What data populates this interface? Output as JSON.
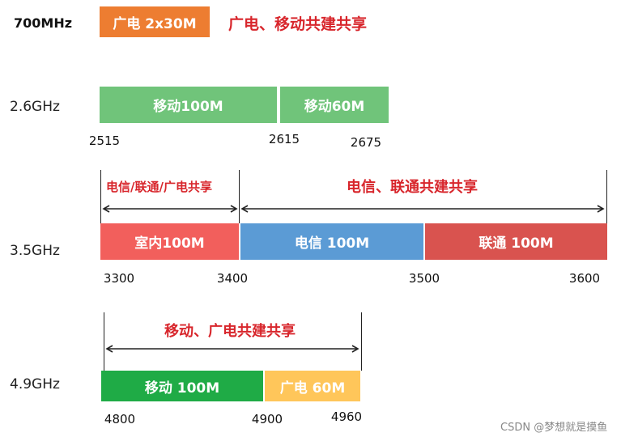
{
  "bands": {
    "b700": {
      "label": "700MHz",
      "segment": "广电 2x30M",
      "note": "广电、移动共建共享"
    },
    "b2600": {
      "label": "2.6GHz",
      "segments": [
        "移动100M",
        "移动60M"
      ],
      "ticks": [
        "2515",
        "2615",
        "2675"
      ]
    },
    "b3500": {
      "label": "3.5GHz",
      "notes": [
        "电信/联通/广电共享",
        "电信、联通共建共享"
      ],
      "segments": [
        "室内100M",
        "电信 100M",
        "联通 100M"
      ],
      "ticks": [
        "3300",
        "3400",
        "3500",
        "3600"
      ]
    },
    "b4900": {
      "label": "4.9GHz",
      "note": "移动、广电共建共享",
      "segments": [
        "移动 100M",
        "广电 60M"
      ],
      "ticks": [
        "4800",
        "4900",
        "4960"
      ]
    }
  },
  "colors": {
    "guangdian_orange": "#ed7d31",
    "mobile_green_light": "#70c47a",
    "indoor_red": "#f25f5c",
    "telecom_blue": "#5b9bd5",
    "unicom_red": "#d9534f",
    "mobile_green": "#1fab46",
    "guangdian_yellow": "#ffc65a",
    "note_red": "#d8262c"
  },
  "watermark": "CSDN @梦想就是摸鱼"
}
